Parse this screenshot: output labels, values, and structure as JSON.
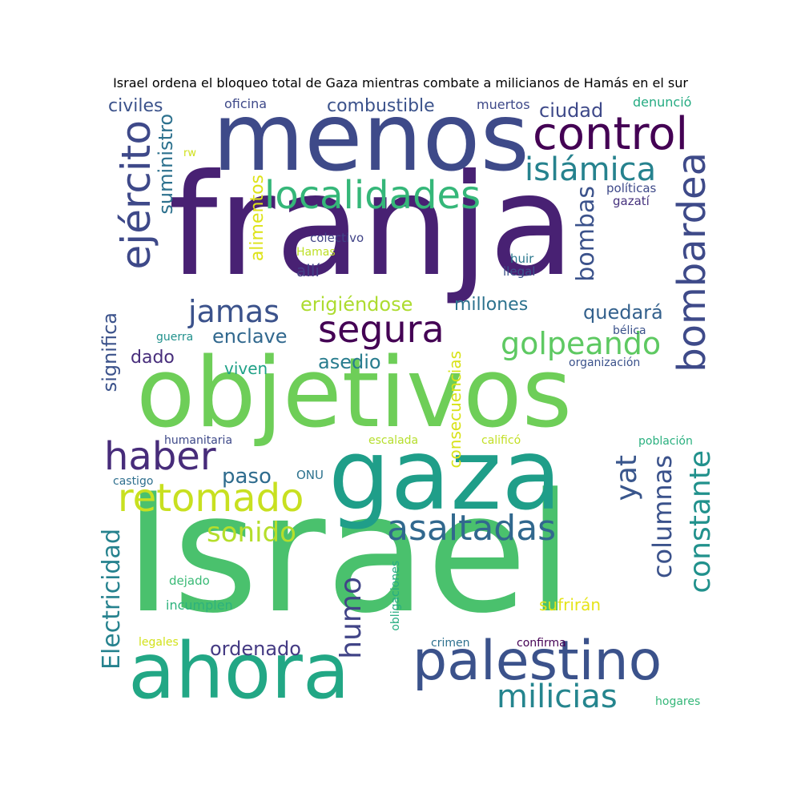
{
  "title": "Israel ordena el bloqueo total de Gaza mientras combate a milicianos de Hamás en el sur",
  "words": [
    {
      "text": "Israel",
      "color": "#4ac16d"
    },
    {
      "text": "franja",
      "color": "#482173"
    },
    {
      "text": "objetivos",
      "color": "#6ece58"
    },
    {
      "text": "menos",
      "color": "#3e4a89"
    },
    {
      "text": "gaza",
      "color": "#1f9e89"
    },
    {
      "text": "ahora",
      "color": "#22a785"
    },
    {
      "text": "palestino",
      "color": "#3b528b"
    },
    {
      "text": "control",
      "color": "#440154"
    },
    {
      "text": "localidades",
      "color": "#35b779"
    },
    {
      "text": "ejército",
      "color": "#3e4989"
    },
    {
      "text": "segura",
      "color": "#440154"
    },
    {
      "text": "islámica",
      "color": "#26828e"
    },
    {
      "text": "bombardea",
      "color": "#3e4a89"
    },
    {
      "text": "retomado",
      "color": "#c8e020"
    },
    {
      "text": "asaltadas",
      "color": "#31688e"
    },
    {
      "text": "haber",
      "color": "#472c7a"
    },
    {
      "text": "golpeando",
      "color": "#5ec962"
    },
    {
      "text": "jamas",
      "color": "#3b528b"
    },
    {
      "text": "constante",
      "color": "#21918c"
    },
    {
      "text": "columnas",
      "color": "#3b528b"
    },
    {
      "text": "milicias",
      "color": "#25858e"
    },
    {
      "text": "sonido",
      "color": "#b5de2b"
    },
    {
      "text": "humo",
      "color": "#414487"
    },
    {
      "text": "Electricidad",
      "color": "#26828e"
    },
    {
      "text": "bombas",
      "color": "#3b528b"
    },
    {
      "text": "combustible",
      "color": "#3b528b"
    },
    {
      "text": "ciudad",
      "color": "#3e4989"
    },
    {
      "text": "erigiéndose",
      "color": "#addc30"
    },
    {
      "text": "millones",
      "color": "#2c728e"
    },
    {
      "text": "quedará",
      "color": "#34618d"
    },
    {
      "text": "enclave",
      "color": "#31688e"
    },
    {
      "text": "asedio",
      "color": "#287c8e"
    },
    {
      "text": "yat",
      "color": "#39568c"
    },
    {
      "text": "paso",
      "color": "#2f6c8e"
    },
    {
      "text": "ordenado",
      "color": "#443a83"
    },
    {
      "text": "dado",
      "color": "#472d7b"
    },
    {
      "text": "viven",
      "color": "#1fa187"
    },
    {
      "text": "suministro",
      "color": "#2d718e"
    },
    {
      "text": "alimentos",
      "color": "#dde318"
    },
    {
      "text": "significa",
      "color": "#3b528b"
    },
    {
      "text": "civiles",
      "color": "#3b528b"
    },
    {
      "text": "consecuencias",
      "color": "#d8e219"
    },
    {
      "text": "sufrirán",
      "color": "#e5e419"
    },
    {
      "text": "allí",
      "color": "#433e85"
    },
    {
      "text": "oficina",
      "color": "#3e4989"
    },
    {
      "text": "muertos",
      "color": "#3e4989"
    },
    {
      "text": "denunció",
      "color": "#25ab82"
    },
    {
      "text": "políticas",
      "color": "#3e4989"
    },
    {
      "text": "gazatí",
      "color": "#46327e"
    },
    {
      "text": "colectivo",
      "color": "#414487"
    },
    {
      "text": "Hamas",
      "color": "#bddf26"
    },
    {
      "text": "huir",
      "color": "#2a788e"
    },
    {
      "text": "ilegal",
      "color": "#3b528b"
    },
    {
      "text": "bélica",
      "color": "#3b528b"
    },
    {
      "text": "organización",
      "color": "#3b528b"
    },
    {
      "text": "guerra",
      "color": "#21918c"
    },
    {
      "text": "humanitaria",
      "color": "#3e4989"
    },
    {
      "text": "escalada",
      "color": "#b5de2b"
    },
    {
      "text": "calificó",
      "color": "#c2df23"
    },
    {
      "text": "población",
      "color": "#2ab07f"
    },
    {
      "text": "castigo",
      "color": "#2e6f8e"
    },
    {
      "text": "ONU",
      "color": "#2c728e"
    },
    {
      "text": "dejado",
      "color": "#3aba76"
    },
    {
      "text": "incumplen",
      "color": "#2db27d"
    },
    {
      "text": "obligaciones",
      "color": "#26ad81"
    },
    {
      "text": "legales",
      "color": "#d2e21b"
    },
    {
      "text": "crimen",
      "color": "#2d708e"
    },
    {
      "text": "confirma",
      "color": "#440154"
    },
    {
      "text": "hogares",
      "color": "#35b779"
    },
    {
      "text": "rw",
      "color": "#d0e11c"
    }
  ]
}
